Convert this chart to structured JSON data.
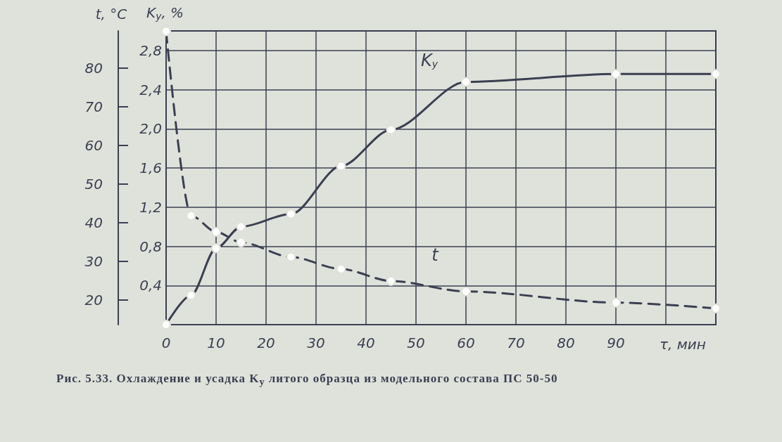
{
  "chart_data": {
    "type": "line",
    "xlabel": "τ, мин",
    "ylabel": "K$_{y}$, %",
    "y2label": "t, °C",
    "annotations": [
      "Рис. 5.33. Охлаждение и усадка K$_{y}$ литого образца из модельного состава ПС 50-50"
    ],
    "x": [
      0,
      5,
      10,
      15,
      25,
      35,
      45,
      60,
      90,
      110
    ],
    "series": [
      {
        "name": "K$_{y}$",
        "color": "#3b3f52",
        "line_style": "solid",
        "values": [
          0,
          0.3,
          0.78,
          1.0,
          1.13,
          1.62,
          1.99,
          2.48,
          2.56,
          2.56
        ]
      },
      {
        "name": "t",
        "color": "#3b3f52",
        "line_style": "dashed",
        "axis": "y2",
        "values": [
          89.5,
          41.8,
          37.6,
          34.9,
          31.1,
          28.0,
          24.9,
          22.2,
          19.3,
          17.8
        ]
      }
    ],
    "xlim": [
      0,
      110
    ],
    "xticks": [
      0,
      10,
      20,
      30,
      40,
      50,
      60,
      70,
      80,
      90,
      {
        "value": 100,
        "label": null
      },
      {
        "value": 110,
        "label": null
      }
    ],
    "ylim": [
      0,
      3.0
    ],
    "yticks": [
      {
        "value": 0,
        "label": null
      },
      {
        "value": 0.4,
        "label": "0,4"
      },
      {
        "value": 0.8,
        "label": "0,8"
      },
      {
        "value": 1.2,
        "label": "1,2"
      },
      {
        "value": 1.6,
        "label": "1,6"
      },
      {
        "value": 2.0,
        "label": "2,0"
      },
      {
        "value": 2.4,
        "label": "2,4"
      },
      {
        "value": 2.8,
        "label": "2,8"
      }
    ],
    "y2lim": [
      13.6,
      89.6
    ],
    "y2ticks": [
      20,
      30,
      40,
      50,
      60,
      70,
      80
    ],
    "grid": true,
    "marker": "circle"
  }
}
